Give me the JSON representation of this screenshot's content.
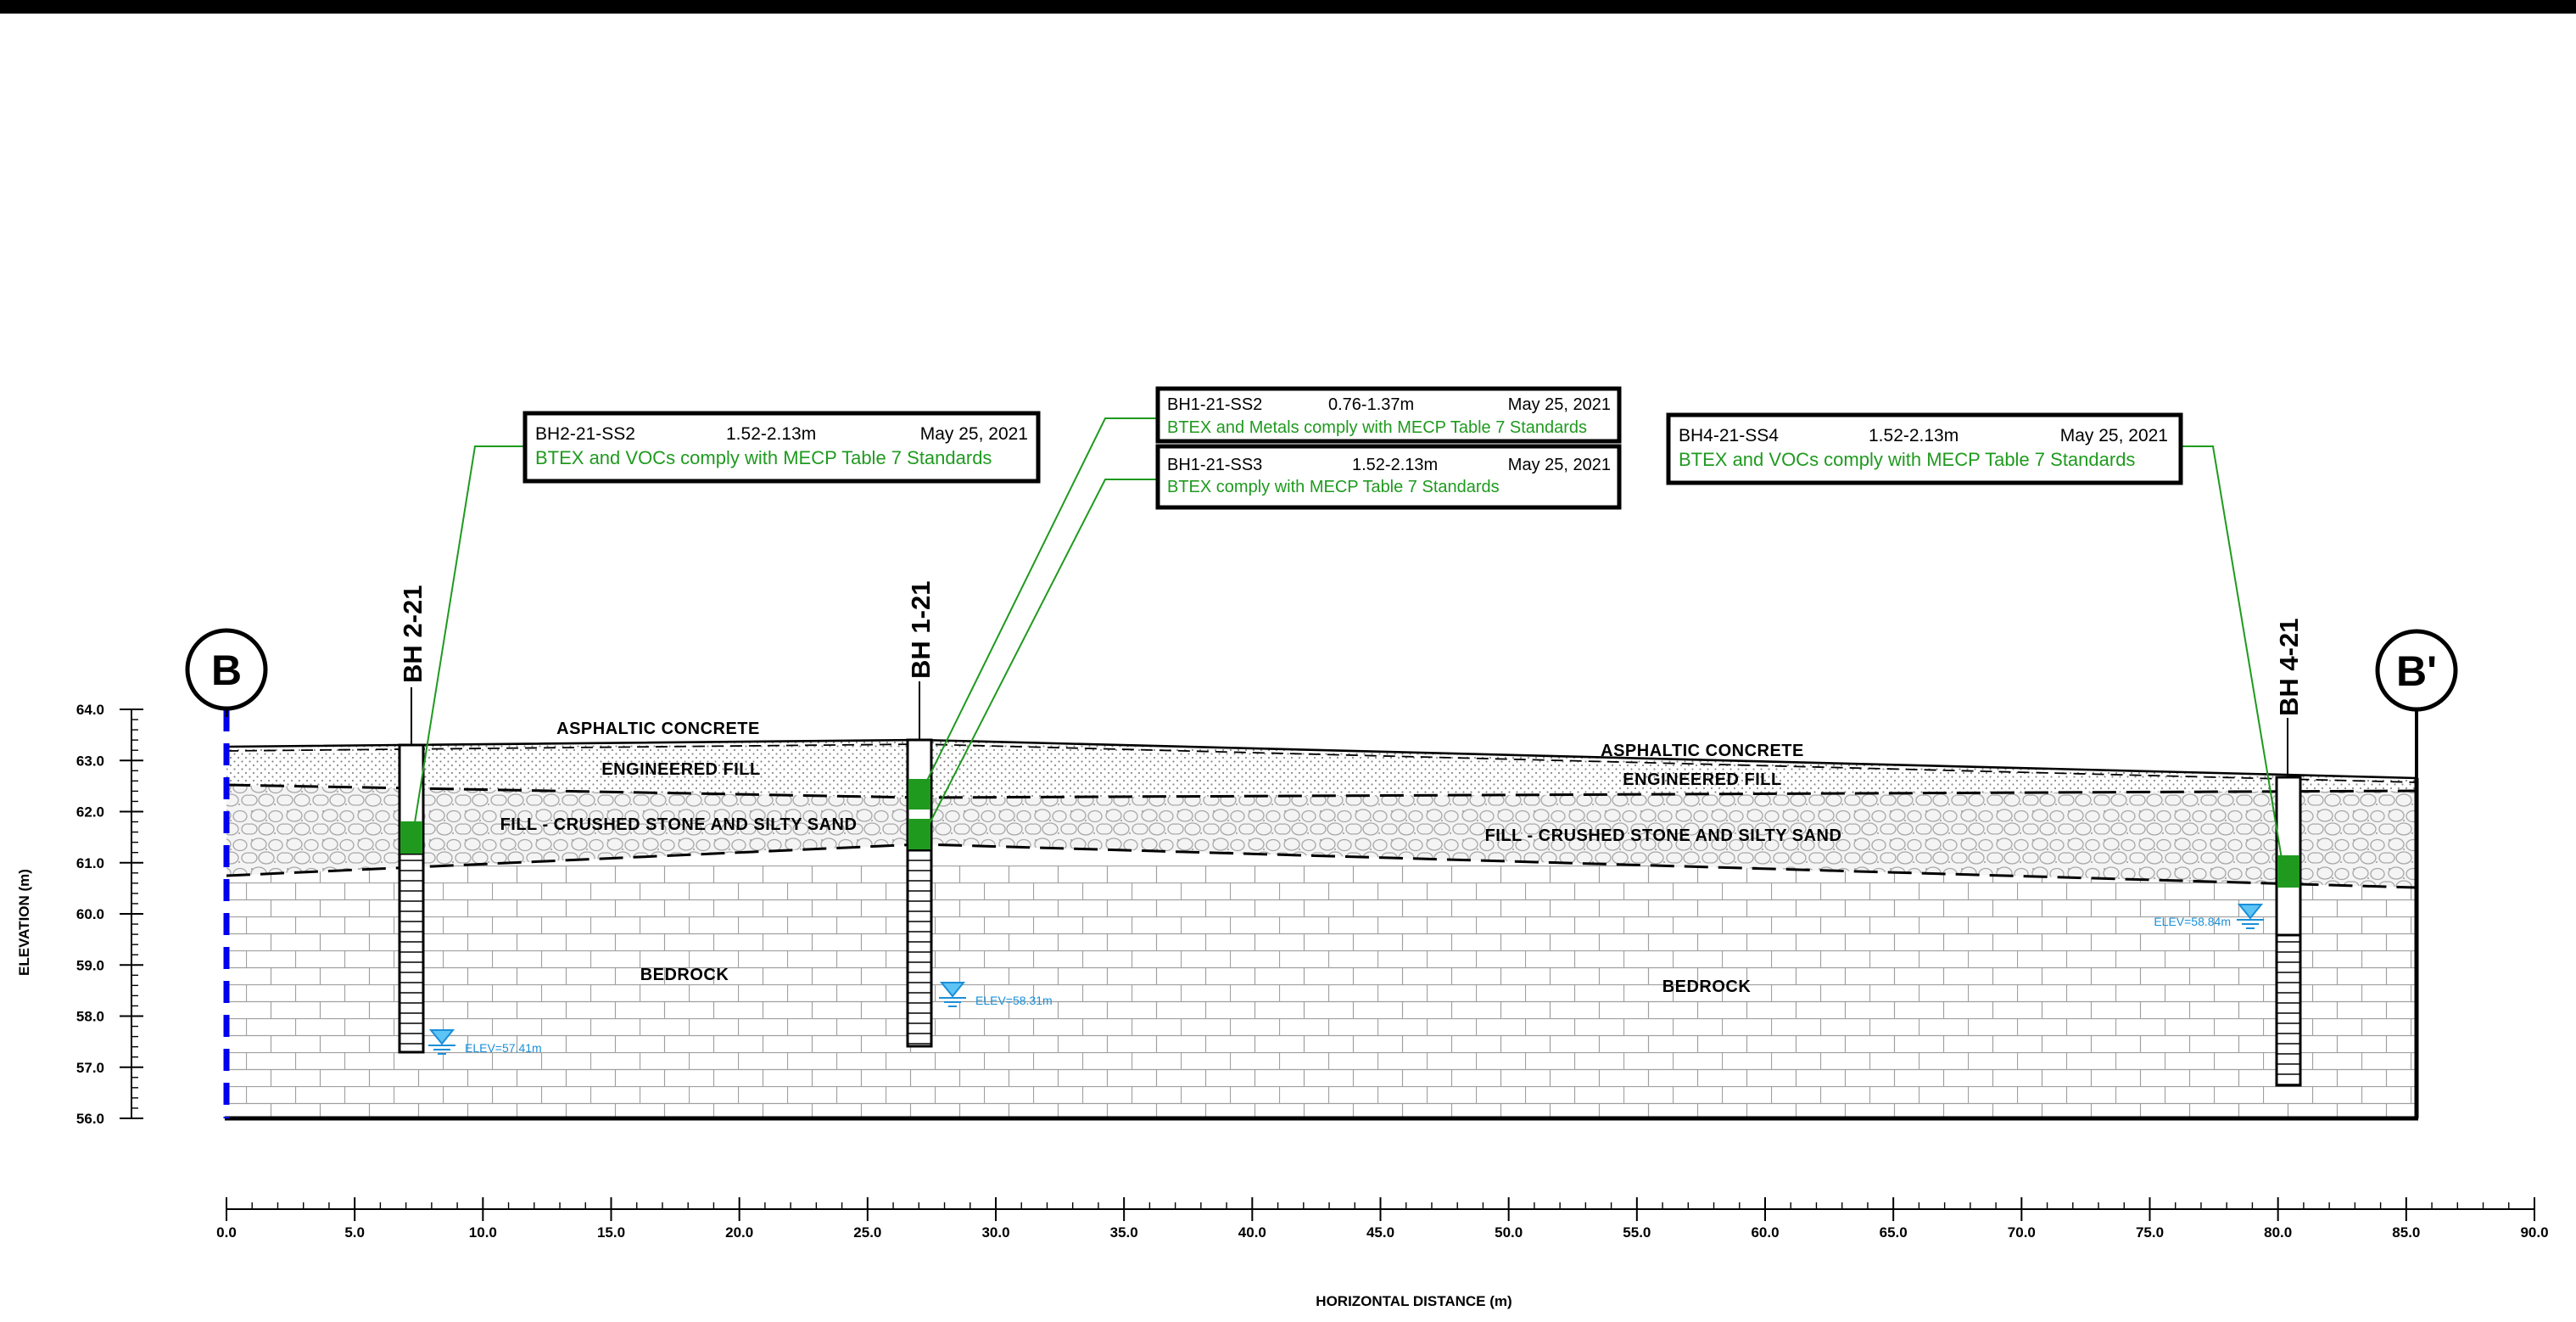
{
  "axes": {
    "y_label": "ELEVATION (m)",
    "x_label": "HORIZONTAL DISTANCE (m)",
    "y_ticks": [
      "64.0",
      "63.0",
      "62.0",
      "61.0",
      "60.0",
      "59.0",
      "58.0",
      "57.0",
      "56.0"
    ],
    "x_ticks": [
      "0.0",
      "5.0",
      "10.0",
      "15.0",
      "20.0",
      "25.0",
      "30.0",
      "35.0",
      "40.0",
      "45.0",
      "50.0",
      "55.0",
      "60.0",
      "65.0",
      "70.0",
      "75.0",
      "80.0",
      "85.0",
      "90.0"
    ],
    "y_range": [
      56,
      64
    ],
    "x_range": [
      0,
      90
    ]
  },
  "section": {
    "start_label": "B",
    "end_label": "B'"
  },
  "layers": {
    "asphalt_left": "ASPHALTIC CONCRETE",
    "asphalt_right": "ASPHALTIC CONCRETE",
    "engineered_left": "ENGINEERED FILL",
    "engineered_right": "ENGINEERED FILL",
    "fill_left": "FILL - CRUSHED STONE AND SILTY SAND",
    "fill_right": "FILL - CRUSHED STONE AND SILTY SAND",
    "bedrock_left": "BEDROCK",
    "bedrock_right": "BEDROCK"
  },
  "boreholes": [
    {
      "name": "BH 2-21",
      "water_level": "ELEV=57.41m"
    },
    {
      "name": "BH 1-21",
      "water_level": "ELEV=58.31m"
    },
    {
      "name": "BH 4-21",
      "water_level": "ELEV=58.84m"
    }
  ],
  "callouts": {
    "bh2": {
      "sample": "BH2-21-SS2",
      "depth": "1.52-2.13m",
      "date": "May 25, 2021",
      "result": "BTEX and VOCs comply with MECP Table 7 Standards"
    },
    "bh1a": {
      "sample": "BH1-21-SS2",
      "depth": "0.76-1.37m",
      "date": "May 25, 2021",
      "result": "BTEX and Metals comply with MECP Table 7 Standards"
    },
    "bh1b": {
      "sample": "BH1-21-SS3",
      "depth": "1.52-2.13m",
      "date": "May 25, 2021",
      "result": "BTEX comply with MECP Table 7 Standards"
    },
    "bh4": {
      "sample": "BH4-21-SS4",
      "depth": "1.52-2.13m",
      "date": "May 25, 2021",
      "result": "BTEX and VOCs comply with MECP Table 7 Standards"
    }
  },
  "colors": {
    "sample_green": "#1f9a1f",
    "callout_text_green": "#1f9a1f",
    "water_blue": "#1a8fd8",
    "section_line_blue": "#0000ee"
  }
}
